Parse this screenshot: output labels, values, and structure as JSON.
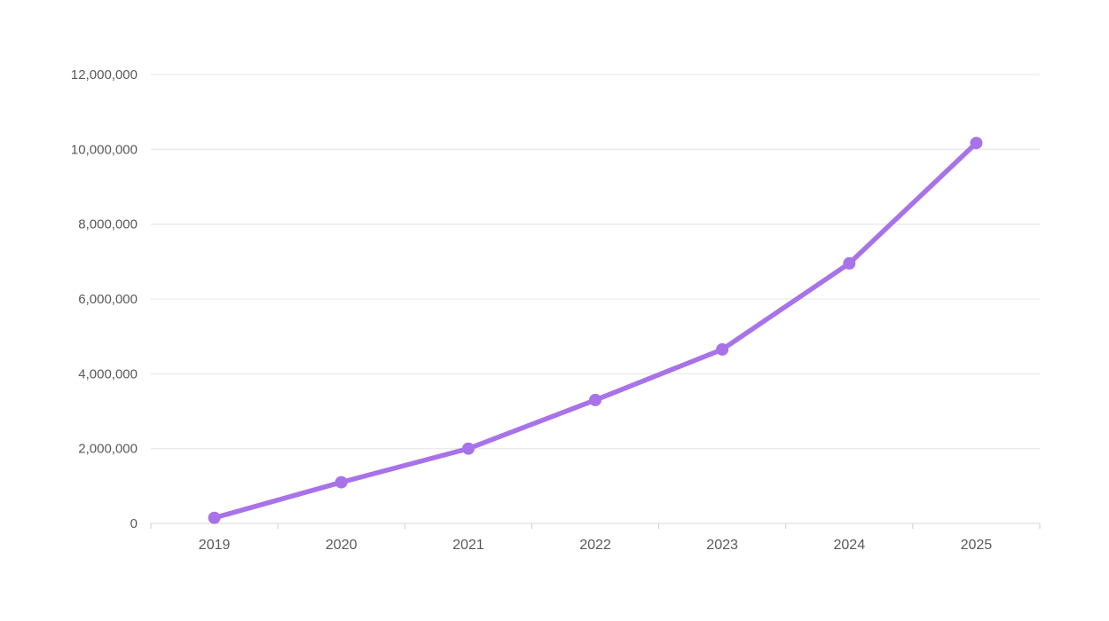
{
  "page": {
    "background_color": "#ffffff"
  },
  "chart_data": {
    "type": "line",
    "categories": [
      "2019",
      "2020",
      "2021",
      "2022",
      "2023",
      "2024",
      "2025"
    ],
    "series": [
      {
        "name": "series-1",
        "values": [
          150000,
          1100000,
          2000000,
          3300000,
          4650000,
          6950000,
          10170000
        ]
      }
    ],
    "ylim": [
      0,
      12000000
    ],
    "ytick_interval": 2000000,
    "ytick_labels": [
      "0",
      "2,000,000",
      "4,000,000",
      "6,000,000",
      "8,000,000",
      "10,000,000",
      "12,000,000"
    ],
    "grid": "horizontal",
    "legend": "none",
    "xlabel": "",
    "ylabel": "",
    "colors": {
      "line": "#a873e8",
      "marker": "#a873e8",
      "gridline": "#e4e4e4",
      "axis": "#d9d9d9",
      "tick": "#cdcdcd",
      "label": "#595959"
    }
  }
}
